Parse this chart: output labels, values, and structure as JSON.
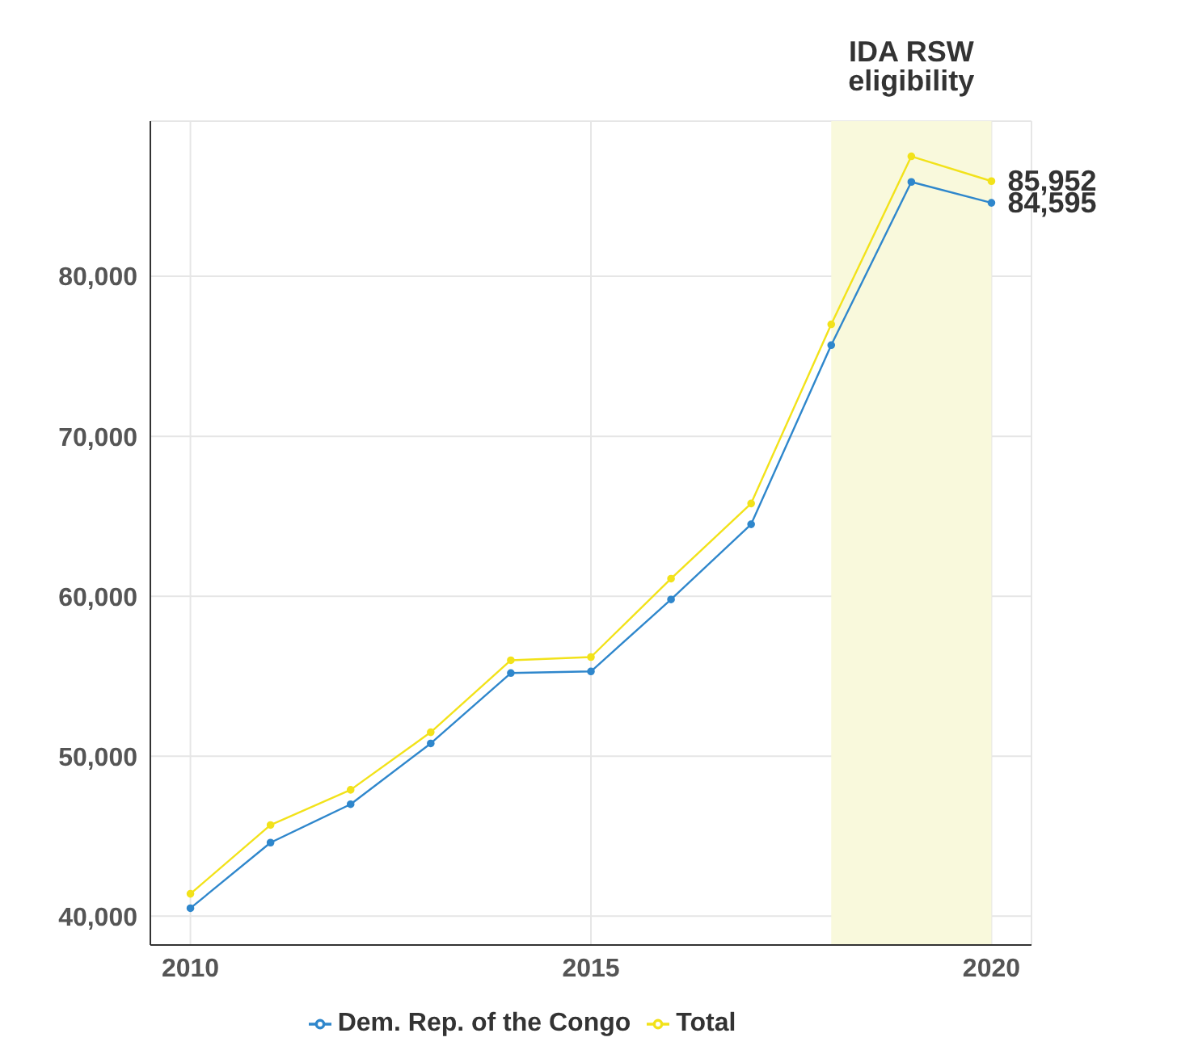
{
  "chart_data": {
    "type": "line",
    "x": [
      2010,
      2011,
      2012,
      2013,
      2014,
      2015,
      2016,
      2017,
      2018,
      2019,
      2020
    ],
    "series": [
      {
        "name": "Dem. Rep. of the Congo",
        "color": "#2f87cc",
        "values": [
          40500,
          44600,
          47000,
          50800,
          55200,
          55300,
          59800,
          64500,
          75700,
          85900,
          84595
        ],
        "value_labels": [
          null,
          null,
          null,
          null,
          null,
          null,
          null,
          null,
          null,
          null,
          "84,595"
        ]
      },
      {
        "name": "Total",
        "color": "#f2e21a",
        "values": [
          41400,
          45700,
          47900,
          51500,
          56000,
          56200,
          61100,
          65800,
          77000,
          87500,
          85952
        ],
        "value_labels": [
          null,
          null,
          null,
          null,
          null,
          null,
          null,
          null,
          null,
          null,
          "85,952"
        ]
      }
    ],
    "xlim": [
      2009.5,
      2020.5
    ],
    "xticks": [
      2010,
      2015,
      2020
    ],
    "ylim": [
      38200,
      89700
    ],
    "yticks": [
      {
        "value": 40000,
        "label": "40,000"
      },
      {
        "value": 50000,
        "label": "50,000"
      },
      {
        "value": 60000,
        "label": "60,000"
      },
      {
        "value": 70000,
        "label": "70,000"
      },
      {
        "value": 80000,
        "label": "80,000"
      }
    ],
    "bands": [
      {
        "axis": "x",
        "from": 2018,
        "to": 2020,
        "label": "IDA RSW eligibility",
        "color": "#f9f9dc"
      }
    ],
    "grid": true,
    "legend": "bottom",
    "marker": "circle",
    "line_style": "solid"
  }
}
